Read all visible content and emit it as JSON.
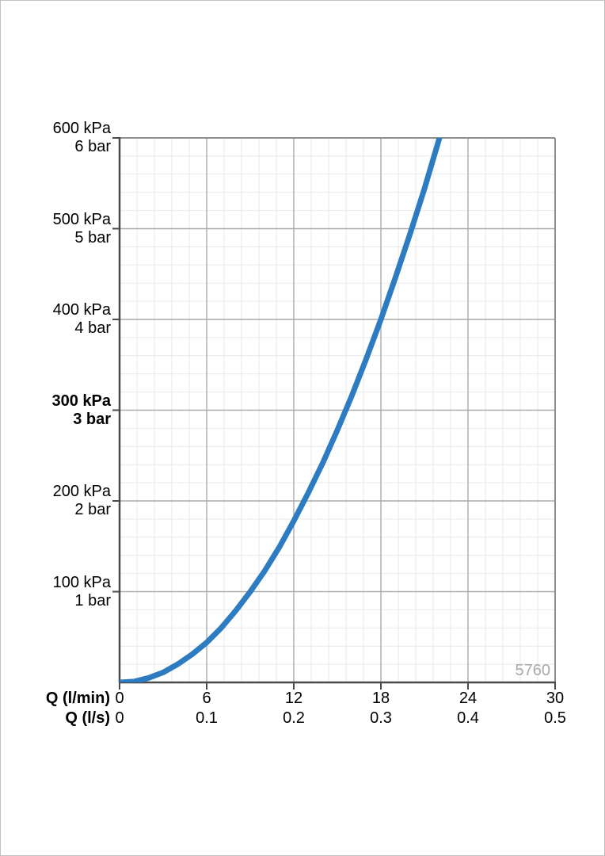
{
  "chart_data": {
    "type": "line",
    "title": "",
    "watermark": "5760",
    "x_axis": {
      "min": 0,
      "max": 30,
      "major_step": 6,
      "minor_step": 1.2,
      "tick_values": [
        0,
        6,
        12,
        18,
        24,
        30
      ],
      "rows": [
        {
          "label": "Q (l/min)",
          "ticks": [
            "0",
            "6",
            "12",
            "18",
            "24",
            "30"
          ]
        },
        {
          "label": "Q (l/s)",
          "ticks": [
            "0",
            "0.1",
            "0.2",
            "0.3",
            "0.4",
            "0.5"
          ]
        }
      ]
    },
    "y_axis": {
      "min": 0,
      "max": 600,
      "major_step": 100,
      "minor_step": 20,
      "unit_primary": "kPa",
      "unit_secondary": "bar",
      "ticks": [
        {
          "value": 600,
          "kpa": "600 kPa",
          "bar": "6 bar",
          "bold": false
        },
        {
          "value": 500,
          "kpa": "500 kPa",
          "bar": "5 bar",
          "bold": false
        },
        {
          "value": 400,
          "kpa": "400 kPa",
          "bar": "4 bar",
          "bold": false
        },
        {
          "value": 300,
          "kpa": "300 kPa",
          "bar": "3 bar",
          "bold": true
        },
        {
          "value": 200,
          "kpa": "200 kPa",
          "bar": "2 bar",
          "bold": false
        },
        {
          "value": 100,
          "kpa": "100 kPa",
          "bar": "1 bar",
          "bold": false
        }
      ]
    },
    "series": [
      {
        "name": "flow-pressure-curve",
        "color": "#2d7bc1",
        "stroke_width": 7,
        "points_q_lmin_p_kpa": [
          [
            0,
            0
          ],
          [
            1,
            1
          ],
          [
            2,
            5
          ],
          [
            3,
            11
          ],
          [
            4,
            20
          ],
          [
            5,
            31
          ],
          [
            6,
            44
          ],
          [
            7,
            60
          ],
          [
            8,
            79
          ],
          [
            9,
            100
          ],
          [
            10,
            123
          ],
          [
            11,
            149
          ],
          [
            12,
            178
          ],
          [
            13,
            209
          ],
          [
            14,
            242
          ],
          [
            15,
            278
          ],
          [
            16,
            316
          ],
          [
            17,
            357
          ],
          [
            18,
            400
          ],
          [
            19,
            446
          ],
          [
            20,
            494
          ],
          [
            21,
            544
          ],
          [
            22,
            598
          ],
          [
            22.3,
            614
          ]
        ]
      }
    ],
    "grid": {
      "minor_color": "#e9e9e9",
      "major_color": "#aaaaaa",
      "frame_color": "#8f8f8f",
      "axis_color": "#4a4a4a"
    }
  }
}
